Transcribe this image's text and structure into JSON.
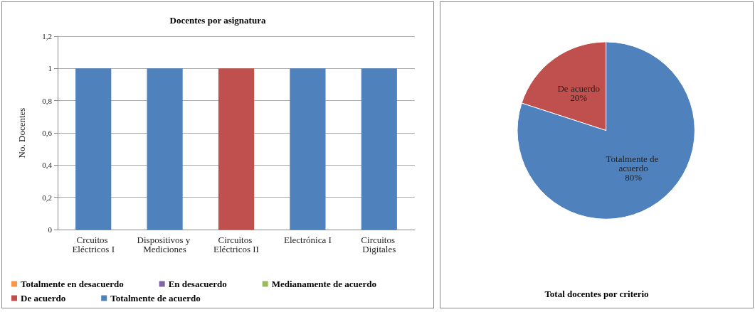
{
  "chart_data": [
    {
      "type": "bar",
      "title": "Docentes por asignatura",
      "ylabel": "No. Docentes",
      "stacked": true,
      "grid": "y",
      "legend": "bottom",
      "categories": [
        "Crcuitos Eléctricos I",
        "Dispositivos y Mediciones",
        "Circuitos Eléctricos II",
        "Electrónica I",
        "Circuitos Digitales"
      ],
      "ylim": [
        0,
        1.2
      ],
      "yticks": [
        0,
        {
          "value": 0.2,
          "label": "0,2"
        },
        {
          "value": 0.4,
          "label": "0,4"
        },
        {
          "value": 0.6,
          "label": "0,6"
        },
        {
          "value": 0.8,
          "label": "0,8"
        },
        1,
        {
          "value": 1.2,
          "label": "1,2"
        }
      ],
      "series": [
        {
          "name": "Totalmente en desacuerdo",
          "color": "#f79646",
          "values": [
            null,
            null,
            null,
            null,
            null
          ]
        },
        {
          "name": "En desacuerdo",
          "color": "#8064a2",
          "values": [
            null,
            null,
            null,
            null,
            null
          ]
        },
        {
          "name": "Medianamente de acuerdo",
          "color": "#9bbb59",
          "values": [
            null,
            null,
            null,
            null,
            null
          ]
        },
        {
          "name": "De acuerdo",
          "color": "#c0504d",
          "values": [
            null,
            null,
            1,
            null,
            null
          ]
        },
        {
          "name": "Totalmente de acuerdo",
          "color": "#4f81bd",
          "values": [
            1,
            1,
            null,
            1,
            1
          ]
        }
      ]
    },
    {
      "type": "pie",
      "title": "Total docentes por criterio",
      "categories": [
        "De acuerdo",
        "Totalmente de acuerdo"
      ],
      "values": [
        20,
        80
      ],
      "colors": [
        "#c0504d",
        "#4f81bd"
      ],
      "value_labels": [
        "20%",
        "80%"
      ]
    }
  ]
}
